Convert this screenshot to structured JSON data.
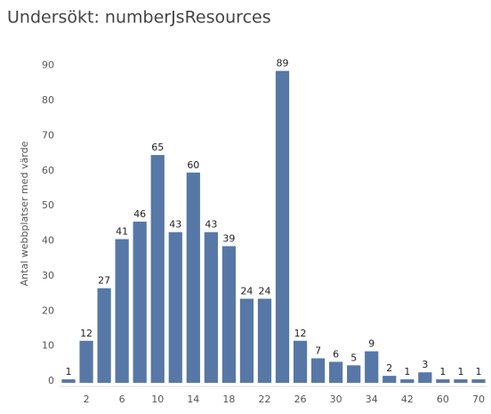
{
  "chart_data": {
    "type": "bar",
    "title": "Undersökt: numberJsResources",
    "y_label": "Antal webbplatser med värde",
    "categories": [
      null,
      "2",
      null,
      "6",
      null,
      "10",
      null,
      "14",
      null,
      "18",
      null,
      "22",
      null,
      "26",
      null,
      "30",
      null,
      "34",
      null,
      "42",
      null,
      "60",
      null,
      "70"
    ],
    "values": [
      1,
      12,
      27,
      41,
      46,
      65,
      43,
      60,
      43,
      39,
      24,
      24,
      89,
      12,
      7,
      6,
      5,
      9,
      2,
      1,
      3,
      1,
      1,
      1
    ],
    "color": "#5778a6",
    "ylim": [
      0,
      95
    ],
    "yticks": [
      0,
      10,
      20,
      30,
      40,
      50,
      60,
      70,
      80,
      90
    ],
    "grid": false
  }
}
